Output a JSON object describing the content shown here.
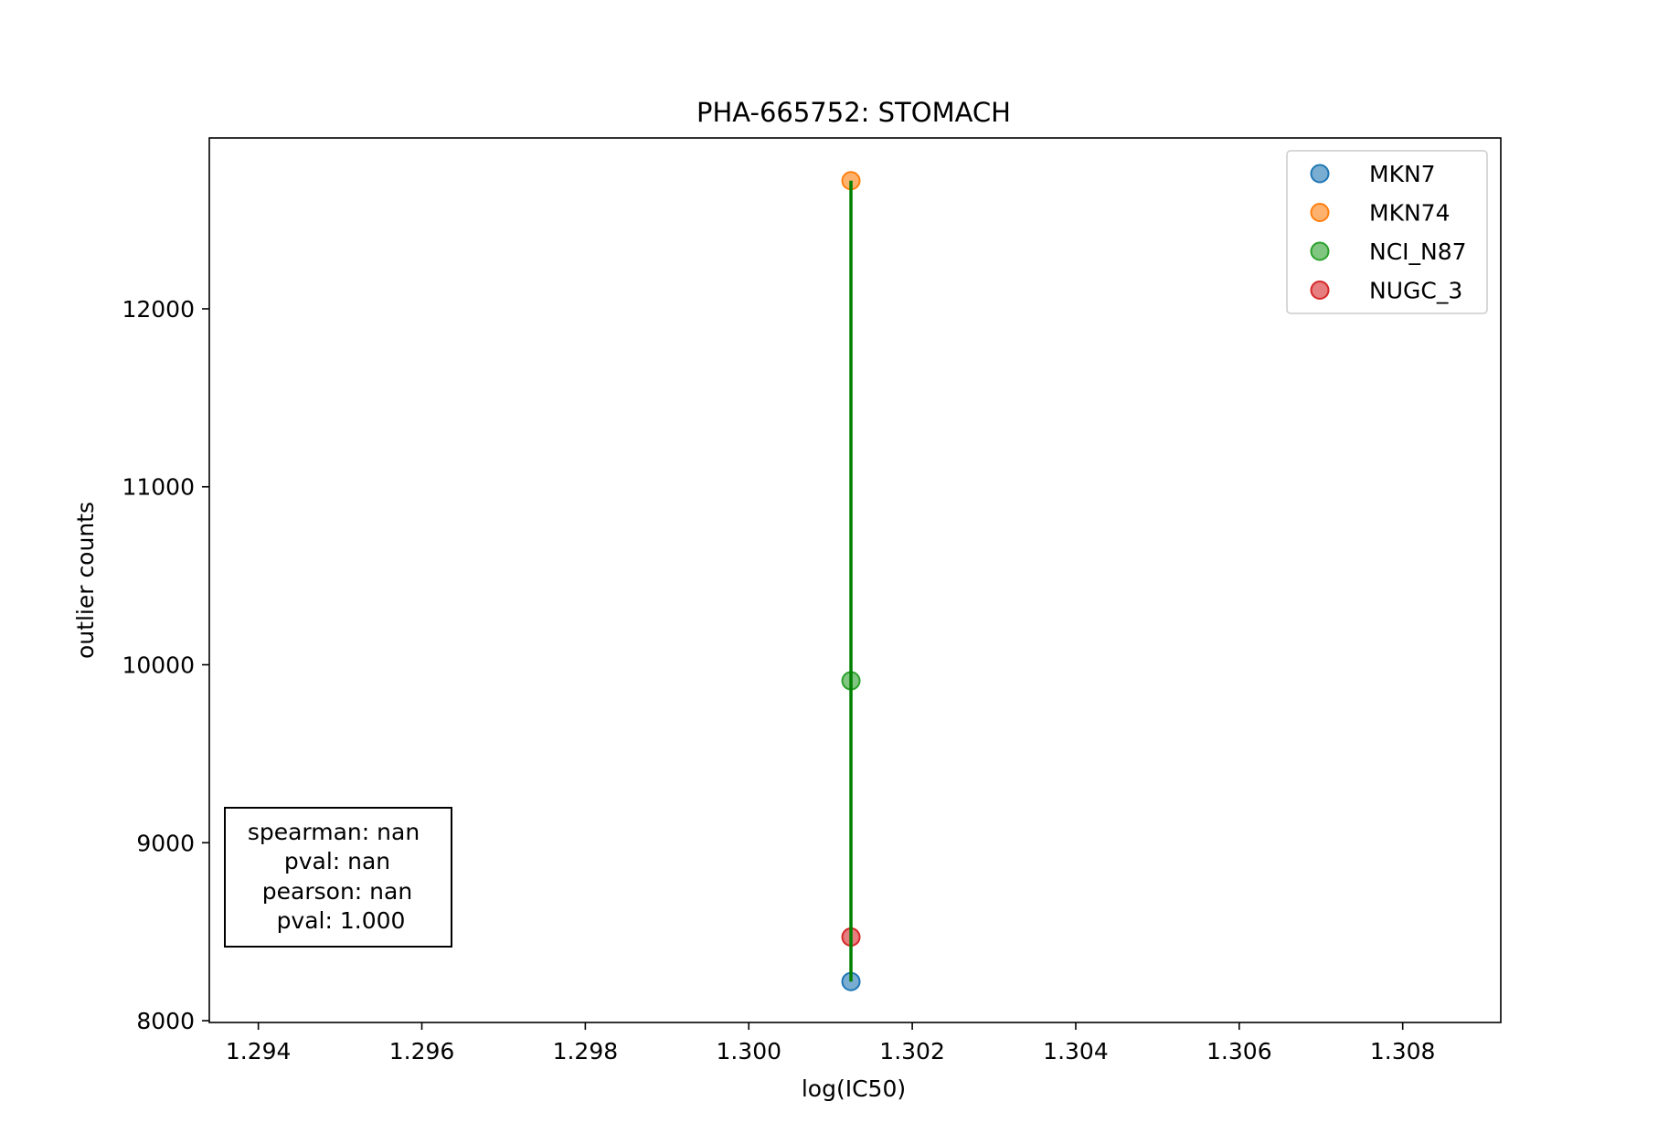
{
  "chart_data": {
    "type": "scatter",
    "title": "PHA-665752: STOMACH",
    "xlabel": "log(IC50)",
    "ylabel": "outlier counts",
    "xlim": [
      1.2934,
      1.3092
    ],
    "ylim": [
      7990,
      12960
    ],
    "xticks": [
      1.294,
      1.296,
      1.298,
      1.3,
      1.302,
      1.304,
      1.306,
      1.308
    ],
    "xtick_labels": [
      "1.294",
      "1.296",
      "1.298",
      "1.300",
      "1.302",
      "1.304",
      "1.306",
      "1.308"
    ],
    "yticks": [
      8000,
      9000,
      10000,
      11000,
      12000
    ],
    "ytick_labels": [
      "8000",
      "9000",
      "10000",
      "11000",
      "12000"
    ],
    "grid": false,
    "legend_position": "top-right",
    "series": [
      {
        "name": "MKN7",
        "color": "#1f77b4",
        "points": [
          {
            "x": 1.30125,
            "y": 8220
          }
        ]
      },
      {
        "name": "MKN74",
        "color": "#ff7f0e",
        "points": [
          {
            "x": 1.30125,
            "y": 12720
          }
        ]
      },
      {
        "name": "NCI_N87",
        "color": "#2ca02c",
        "points": [
          {
            "x": 1.30125,
            "y": 9910
          }
        ]
      },
      {
        "name": "NUGC_3",
        "color": "#d62728",
        "points": [
          {
            "x": 1.30125,
            "y": 8470
          }
        ]
      }
    ],
    "fit_line": {
      "color": "#008000",
      "x": [
        1.30125,
        1.30125
      ],
      "y": [
        8220,
        12720
      ]
    },
    "stats_box": {
      "position": "bottom-left",
      "lines": [
        "spearman: nan",
        "pval: nan",
        "pearson: nan",
        "pval: 1.000"
      ]
    }
  }
}
